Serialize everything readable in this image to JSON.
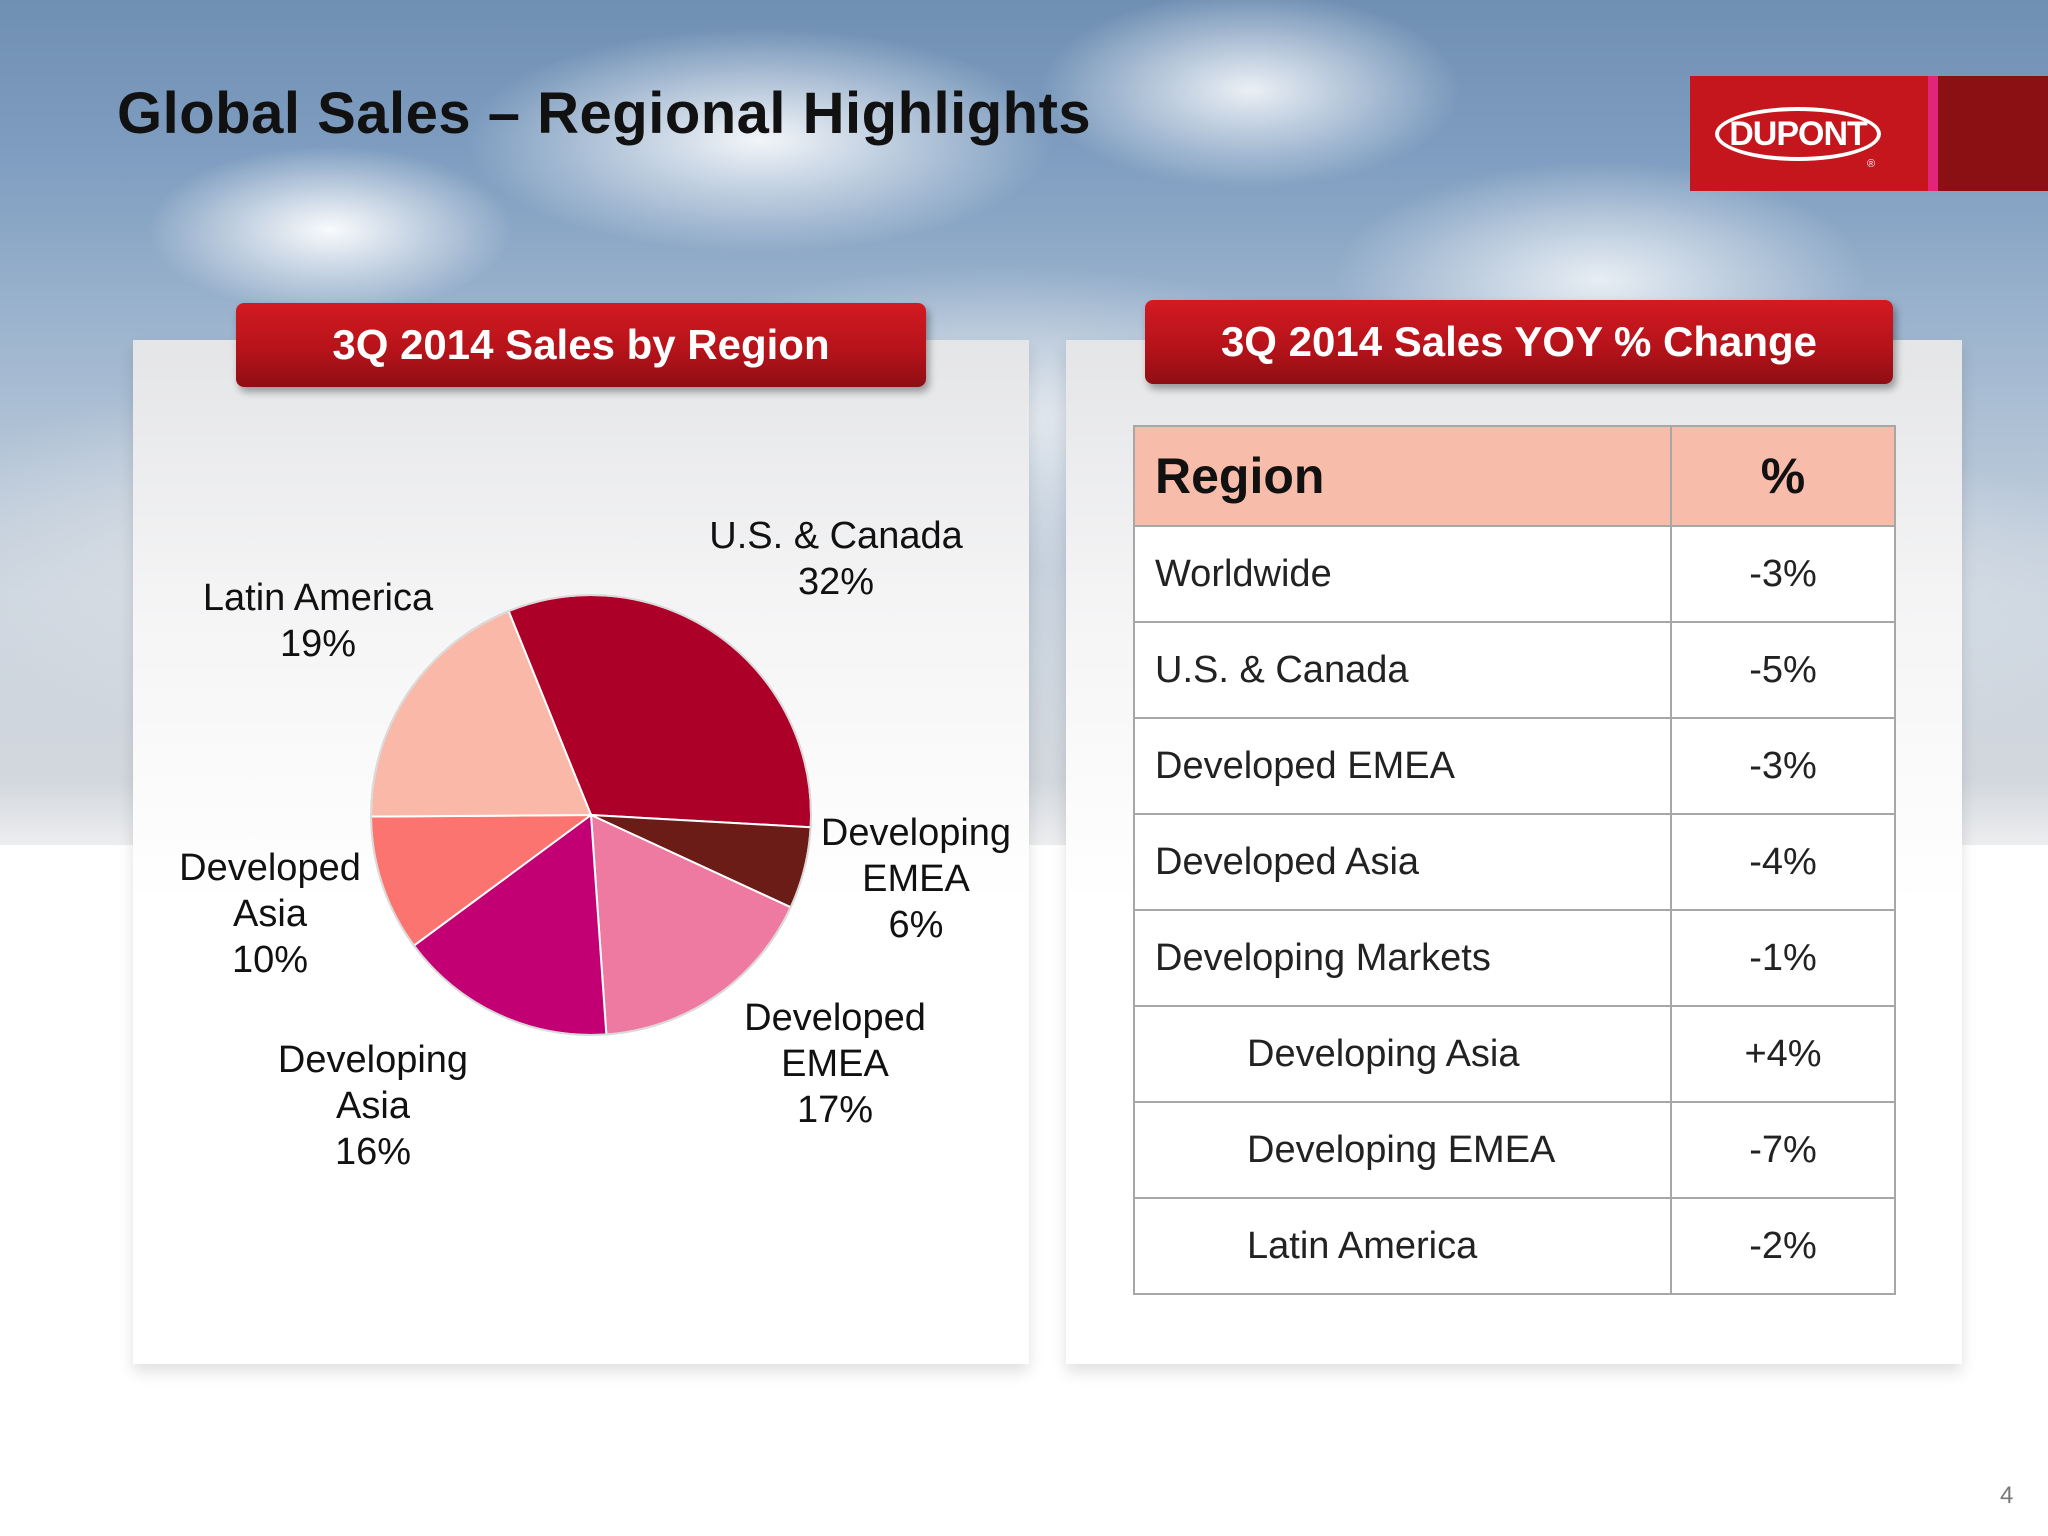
{
  "title": "Global Sales – Regional Highlights",
  "logo": {
    "brand": "DUPONT",
    "registered_mark": "®",
    "colors": {
      "red": "#c4161c",
      "pink": "#e0257a",
      "dark_red": "#8a1014"
    }
  },
  "left_panel": {
    "banner": "3Q 2014 Sales by Region"
  },
  "right_panel": {
    "banner": "3Q 2014 Sales YOY % Change"
  },
  "chart_data": {
    "type": "pie",
    "title": "3Q 2014 Sales by Region",
    "unit": "%",
    "slices": [
      {
        "name": "U.S. & Canada",
        "value": 32,
        "color": "#ad0028",
        "label_lines": [
          "U.S. & Canada",
          "32%"
        ]
      },
      {
        "name": "Developing EMEA",
        "value": 6,
        "color": "#6c1c17",
        "label_lines": [
          "Developing",
          "EMEA",
          "6%"
        ]
      },
      {
        "name": "Developed EMEA",
        "value": 17,
        "color": "#ee7aa2",
        "label_lines": [
          "Developed",
          "EMEA",
          "17%"
        ]
      },
      {
        "name": "Developing Asia",
        "value": 16,
        "color": "#c20074",
        "label_lines": [
          "Developing",
          "Asia",
          "16%"
        ]
      },
      {
        "name": "Developed Asia",
        "value": 10,
        "color": "#fb7470",
        "label_lines": [
          "Developed",
          "Asia",
          "10%"
        ]
      },
      {
        "name": "Latin America",
        "value": 19,
        "color": "#fab8a8",
        "label_lines": [
          "Latin America",
          "19%"
        ]
      }
    ]
  },
  "table": {
    "headers": {
      "region": "Region",
      "pct": "%"
    },
    "rows": [
      {
        "region": "Worldwide",
        "pct": "-3%",
        "indent": false
      },
      {
        "region": "U.S. & Canada",
        "pct": "-5%",
        "indent": false
      },
      {
        "region": "Developed EMEA",
        "pct": "-3%",
        "indent": false
      },
      {
        "region": "Developed Asia",
        "pct": "-4%",
        "indent": false
      },
      {
        "region": "Developing Markets",
        "pct": "-1%",
        "indent": false
      },
      {
        "region": "Developing Asia",
        "pct": "+4%",
        "indent": true
      },
      {
        "region": "Developing EMEA",
        "pct": "-7%",
        "indent": true
      },
      {
        "region": "Latin America",
        "pct": "-2%",
        "indent": true
      }
    ]
  },
  "page_number": "4"
}
